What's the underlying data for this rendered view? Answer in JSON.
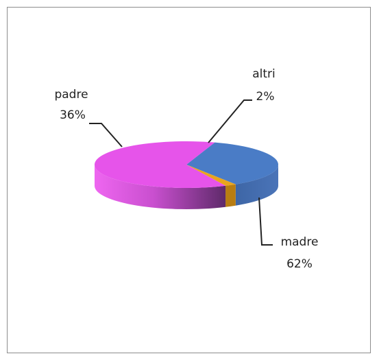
{
  "chart_data": {
    "type": "pie",
    "style": "3d",
    "categories": [
      "padre",
      "altri",
      "madre"
    ],
    "values": [
      36,
      2,
      62
    ],
    "labels": [
      {
        "name": "padre",
        "percent": "36%"
      },
      {
        "name": "altri",
        "percent": "2%"
      },
      {
        "name": "madre",
        "percent": "62%"
      }
    ],
    "colors": {
      "padre": "#4a7cc6",
      "altri": "#e9a51e",
      "madre": "#e654ea"
    },
    "legend": "none",
    "title": ""
  }
}
